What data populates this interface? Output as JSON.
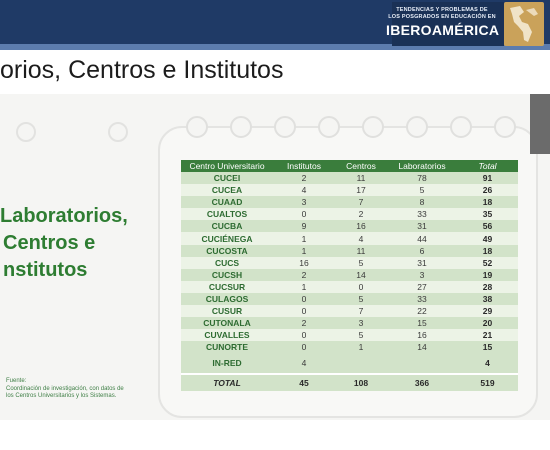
{
  "header": {
    "brand_line1": "TENDENCIAS Y PROBLEMAS DE",
    "brand_line2": "LOS POSGRADOS EN EDUCACIÓN EN",
    "brand_name": "IBEROAMÉRICA"
  },
  "page": {
    "title": "orios, Centros e Institutos"
  },
  "section": {
    "heading_line1": "Laboratorios,",
    "heading_line2": "Centros e",
    "heading_line3": "nstitutos"
  },
  "source": {
    "label": "Fuente:",
    "text": "Coordinación de investigación, con datos de los Centros Universitarios y los Sistemas."
  },
  "table": {
    "headers": [
      "Centro Universitario",
      "Institutos",
      "Centros",
      "Laboratorios",
      "Total"
    ],
    "rows": [
      [
        "CUCEI",
        "2",
        "11",
        "78",
        "91"
      ],
      [
        "CUCEA",
        "4",
        "17",
        "5",
        "26"
      ],
      [
        "CUAAD",
        "3",
        "7",
        "8",
        "18"
      ],
      [
        "CUALTOS",
        "0",
        "2",
        "33",
        "35"
      ],
      [
        "CUCBA",
        "9",
        "16",
        "31",
        "56"
      ],
      [
        "CUCIÉNEGA",
        "1",
        "4",
        "44",
        "49"
      ],
      [
        "CUCOSTA",
        "1",
        "11",
        "6",
        "18"
      ],
      [
        "CUCS",
        "16",
        "5",
        "31",
        "52"
      ],
      [
        "CUCSH",
        "2",
        "14",
        "3",
        "19"
      ],
      [
        "CUCSUR",
        "1",
        "0",
        "27",
        "28"
      ],
      [
        "CULAGOS",
        "0",
        "5",
        "33",
        "38"
      ],
      [
        "CUSUR",
        "0",
        "7",
        "22",
        "29"
      ],
      [
        "CUTONALA",
        "2",
        "3",
        "15",
        "20"
      ],
      [
        "CUVALLES",
        "0",
        "5",
        "16",
        "21"
      ],
      [
        "CUNORTE",
        "0",
        "1",
        "14",
        "15"
      ]
    ],
    "inred": [
      "IN-RED",
      "4",
      "",
      "",
      "4"
    ],
    "total": [
      "TOTAL",
      "45",
      "108",
      "366",
      "519"
    ]
  },
  "colors": {
    "header_bg": "#1f3a66",
    "table_header": "#3a7d3c",
    "accent_green": "#2e7d32"
  }
}
